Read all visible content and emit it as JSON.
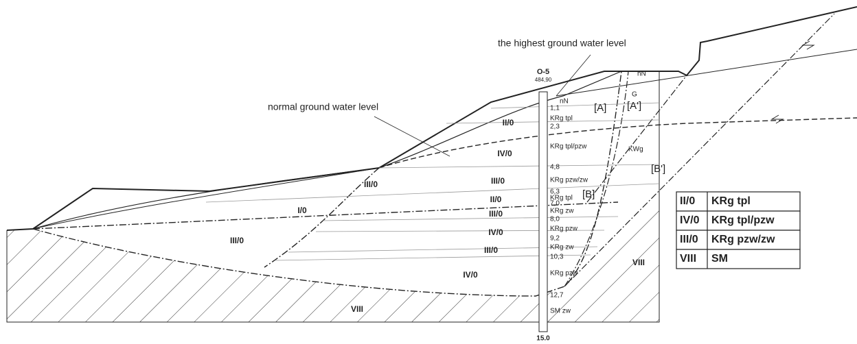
{
  "annotations": {
    "highest_water": "the highest ground water level",
    "normal_water": "normal ground water level"
  },
  "borehole": {
    "name": "O-5",
    "elevation": "484,90",
    "bottom": "15.0",
    "top": "nN",
    "layers": [
      {
        "depth": "1,1",
        "label": "KRg tpl"
      },
      {
        "depth": "2,3",
        "label": "KRg tpl/pzw"
      },
      {
        "depth": "4,8",
        "label": "KRg pzw/zw"
      },
      {
        "depth": "6,3",
        "label": "KRg tpl"
      },
      {
        "depth": "7,0",
        "label": "KRg zw"
      },
      {
        "depth": "8,0",
        "label": "KRg pzw"
      },
      {
        "depth": "9,2",
        "label": "KRg zw"
      },
      {
        "depth": "10,3",
        "label": "KRg pzw"
      },
      {
        "depth": "12,7",
        "label": "SM zw"
      }
    ]
  },
  "zones": [
    "II/0",
    "IV/0",
    "III/0",
    "III/0",
    "I/0",
    "II/0",
    "III/0",
    "III/0",
    "IV/0",
    "III/0",
    "IV/0",
    "VIII",
    "VIII"
  ],
  "soils": [
    "nN",
    "G",
    "KWg"
  ],
  "slip_surfaces": [
    "[A]",
    "[A']",
    "[B]",
    "[B']"
  ],
  "legend": {
    "rows": [
      [
        "II/0",
        "KRg tpl"
      ],
      [
        "IV/0",
        "KRg tpl/pzw"
      ],
      [
        "III/0",
        "KRg pzw/zw"
      ],
      [
        "VIII",
        "SM"
      ]
    ]
  }
}
